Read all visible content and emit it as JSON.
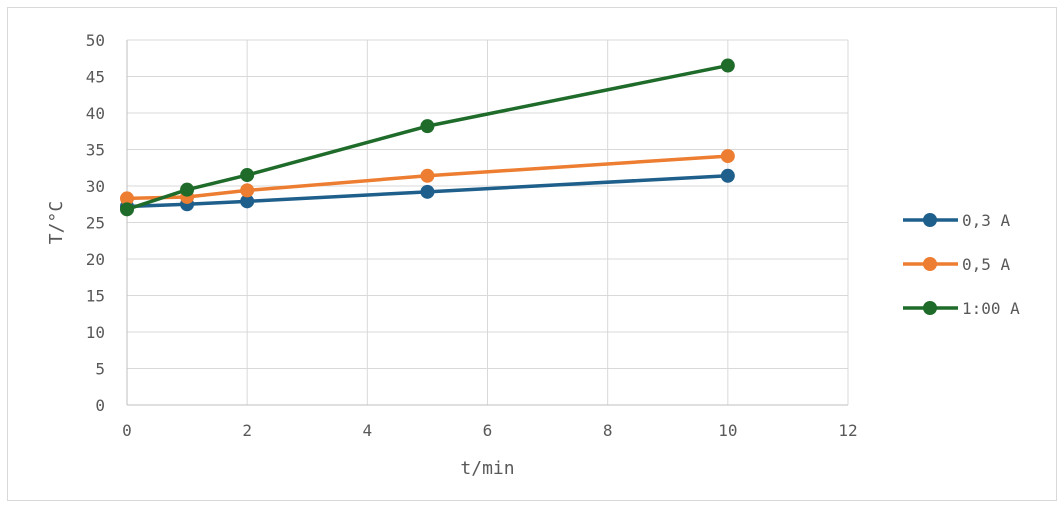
{
  "chart_data": {
    "type": "scatter",
    "title": "",
    "xlabel": "t/min",
    "ylabel": "T/°C",
    "xlim": [
      0,
      12
    ],
    "ylim": [
      0,
      50
    ],
    "xticks": [
      0,
      2,
      4,
      6,
      8,
      10,
      12
    ],
    "yticks": [
      0,
      5,
      10,
      15,
      20,
      25,
      30,
      35,
      40,
      45,
      50
    ],
    "grid": true,
    "legend_position": "right",
    "series": [
      {
        "name": "0,3 A",
        "color": "#1f5f8b",
        "x": [
          0,
          1,
          2,
          5,
          10
        ],
        "y": [
          27.2,
          27.5,
          27.9,
          29.2,
          31.4
        ]
      },
      {
        "name": "0,5 A",
        "color": "#ed7d31",
        "x": [
          0,
          1,
          2,
          5,
          10
        ],
        "y": [
          28.3,
          28.5,
          29.4,
          31.4,
          34.1
        ]
      },
      {
        "name": "1:00 A",
        "color": "#1e6b2a",
        "x": [
          0,
          1,
          2,
          5,
          10
        ],
        "y": [
          26.8,
          29.5,
          31.5,
          38.2,
          46.5
        ]
      }
    ]
  }
}
